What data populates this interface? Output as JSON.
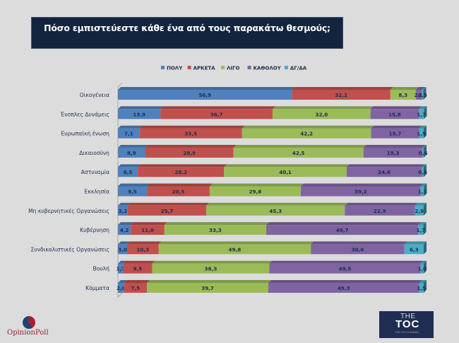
{
  "chart_data": {
    "type": "bar",
    "orientation": "horizontal",
    "stacked": true,
    "title": "Πόσο εμπιστεύεστε κάθε ένα από τους παρακάτω θεσμούς;",
    "xlabel": "",
    "ylabel": "",
    "xlim": [
      0,
      100
    ],
    "grid": false,
    "legend_position": "top-center",
    "categories": [
      "Οικογένεια",
      "Ένοπλες Δυνάμεις",
      "Ευρωπαϊκή ένωση",
      "Δικαιοσύνη",
      "Αστυνομία",
      "Εκκλησία",
      "Μη κυβερνητικές Οργανώσεις",
      "Κυβέρνηση",
      "Συνδικαλιστικές Οργανώσεις",
      "Βουλή",
      "Κόμματα"
    ],
    "series": [
      {
        "name": "ΠΟΛΥ",
        "color": "#4f81bd",
        "values": [
          56.9,
          13.9,
          7.1,
          8.9,
          6.5,
          9.5,
          3.2,
          4.2,
          3.0,
          1.7,
          2.0
        ],
        "labels": [
          "56,9",
          "13,9",
          "7,1",
          "8,9",
          "6,5",
          "9,5",
          "3,2",
          "4,2",
          "3,0",
          "1,7",
          "2,0"
        ]
      },
      {
        "name": "ΑΡΚΕΤΑ",
        "color": "#c0504d",
        "values": [
          32.2,
          36.7,
          33.5,
          28.9,
          28.2,
          20.5,
          25.7,
          11.0,
          10.3,
          9.5,
          7.5
        ],
        "labels": [
          "32,2",
          "36,7",
          "33,5",
          "28,9",
          "28,2",
          "20,5",
          "25,7",
          "11,0",
          "10,3",
          "9,5",
          "7,5"
        ]
      },
      {
        "name": "ΛΙΓΟ",
        "color": "#9bbb59",
        "values": [
          8.3,
          32.0,
          42.2,
          42.5,
          40.1,
          29.8,
          45.3,
          33.3,
          49.8,
          38.3,
          39.7
        ],
        "labels": [
          "8,3",
          "32,0",
          "42,2",
          "42,5",
          "40,1",
          "29,8",
          "45,3",
          "33,3",
          "49,8",
          "38,3",
          "39,7"
        ]
      },
      {
        "name": "ΚΑΘΟΛΟΥ",
        "color": "#8064a2",
        "values": [
          2.0,
          15.8,
          15.7,
          19.3,
          24.6,
          39.2,
          22.9,
          49.7,
          30.6,
          49.5,
          49.3
        ],
        "labels": [
          "2,0",
          "15,8",
          "15,7",
          "19,3",
          "24,6",
          "39,2",
          "22,9",
          "49,7",
          "30,6",
          "49,5",
          "49,3"
        ]
      },
      {
        "name": "ΔΓ/ΔΑ",
        "color": "#4bacc6",
        "values": [
          0.5,
          1.7,
          1.5,
          0.4,
          0.6,
          1.1,
          2.9,
          1.7,
          6.3,
          1.0,
          1.5
        ],
        "labels": [
          "0,5",
          "1,7",
          "1,5",
          "0,4",
          "0,6",
          "1,1",
          "2,9",
          "1,7",
          "6,3",
          "1,0",
          "1,5"
        ]
      }
    ]
  },
  "header": {
    "title": "Πόσο εμπιστεύεστε κάθε ένα από τους παρακάτω θεσμούς;"
  },
  "logos": {
    "opinion_poll": "OpinionPoll",
    "toc_the": "THE",
    "toc_main": "TOC",
    "toc_sub": "THE ON CHANNEL"
  }
}
